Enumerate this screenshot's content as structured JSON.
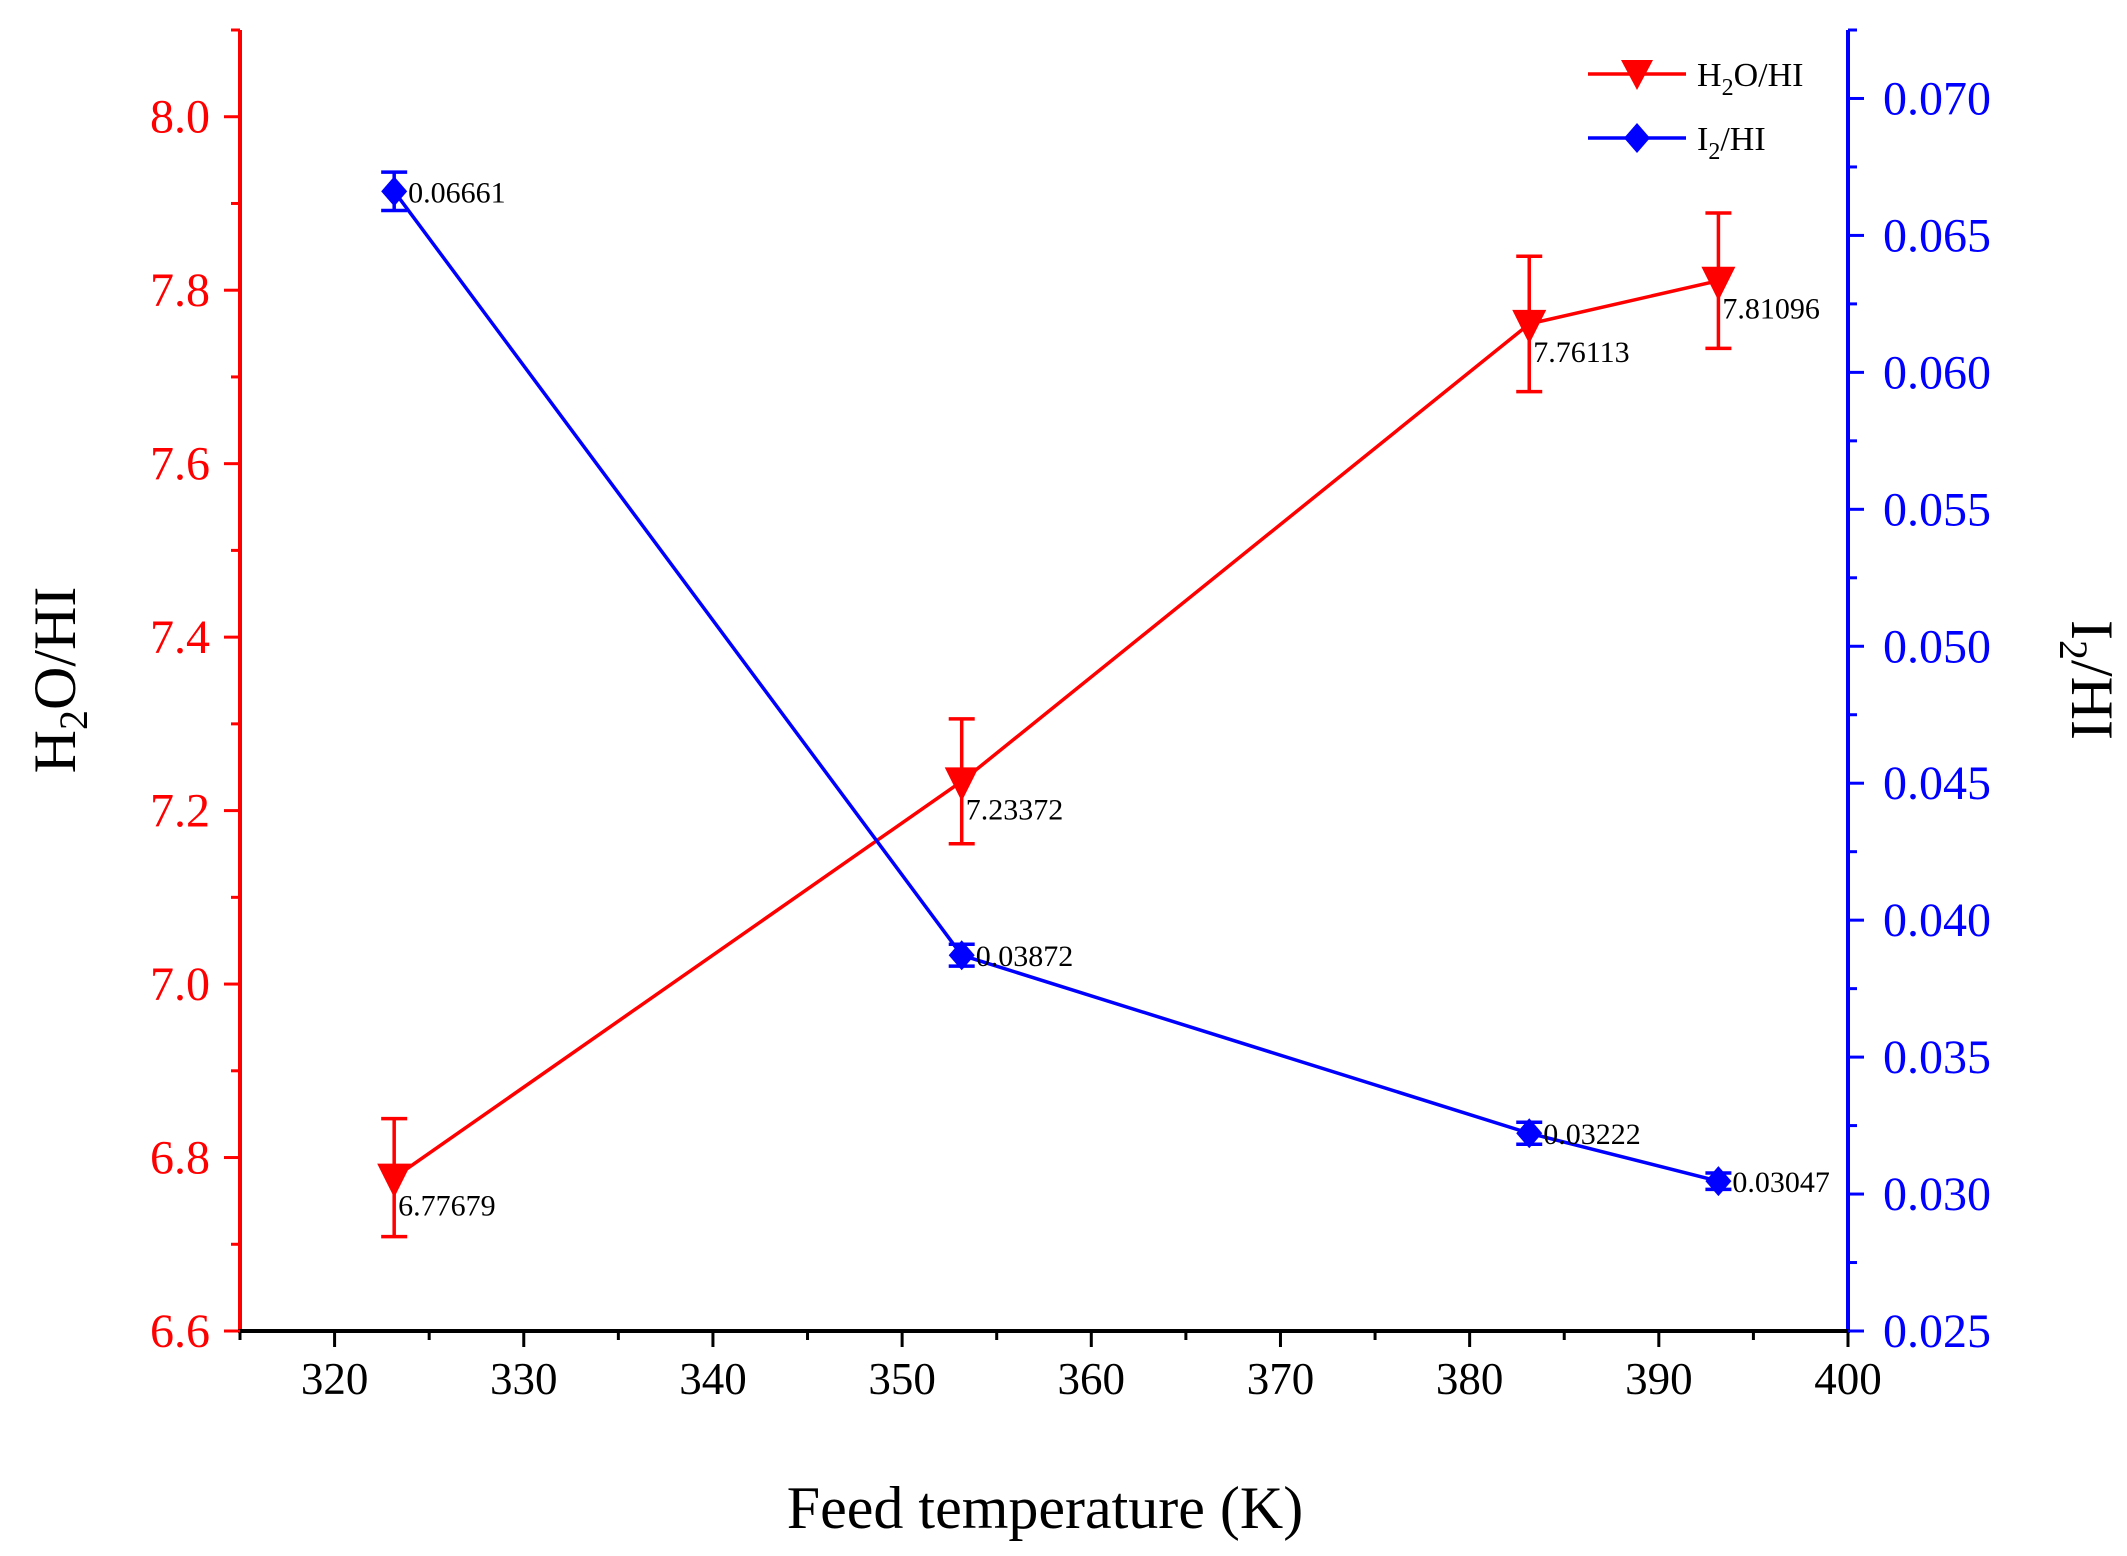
{
  "chart_data": {
    "type": "line",
    "xlabel": "Feed temperature (K)",
    "xlim": [
      315,
      400
    ],
    "x_ticks": [
      320,
      330,
      340,
      350,
      360,
      370,
      380,
      390,
      400
    ],
    "x": [
      323.15,
      353.15,
      383.15,
      393.15
    ],
    "left_axis": {
      "label_main": "H",
      "label_sub": "2",
      "label_rest": "O/HI",
      "ylim": [
        6.6,
        8.1
      ],
      "ticks": [
        "6.6",
        "6.8",
        "7.0",
        "7.2",
        "7.4",
        "7.6",
        "7.8",
        "8.0"
      ],
      "color": "#ff0000"
    },
    "right_axis": {
      "label_main": "I",
      "label_sub": "2",
      "label_rest": "/HI",
      "ylim": [
        0.025,
        0.0725
      ],
      "ticks": [
        "0.025",
        "0.030",
        "0.035",
        "0.040",
        "0.045",
        "0.050",
        "0.055",
        "0.060",
        "0.065",
        "0.070"
      ],
      "color": "#0000ff"
    },
    "series": [
      {
        "name": "H2O/HI",
        "legend_main": "H",
        "legend_sub": "2",
        "legend_rest": "O/HI",
        "axis": "left",
        "marker": "triangle-down",
        "color": "#ff0000",
        "values": [
          6.77679,
          7.23372,
          7.76113,
          7.81096
        ],
        "labels": [
          "6.77679",
          "7.23372",
          "7.76113",
          "7.81096"
        ],
        "error": [
          0.068,
          0.072,
          0.078,
          0.078
        ]
      },
      {
        "name": "I2/HI",
        "legend_main": "I",
        "legend_sub": "2",
        "legend_rest": "/HI",
        "axis": "right",
        "marker": "diamond",
        "color": "#0000ff",
        "values": [
          0.06661,
          0.03872,
          0.03222,
          0.03047
        ],
        "labels": [
          "0.06661",
          "0.03872",
          "0.03222",
          "0.03047"
        ],
        "error": [
          0.0007,
          0.0004,
          0.0004,
          0.0003
        ]
      }
    ]
  }
}
